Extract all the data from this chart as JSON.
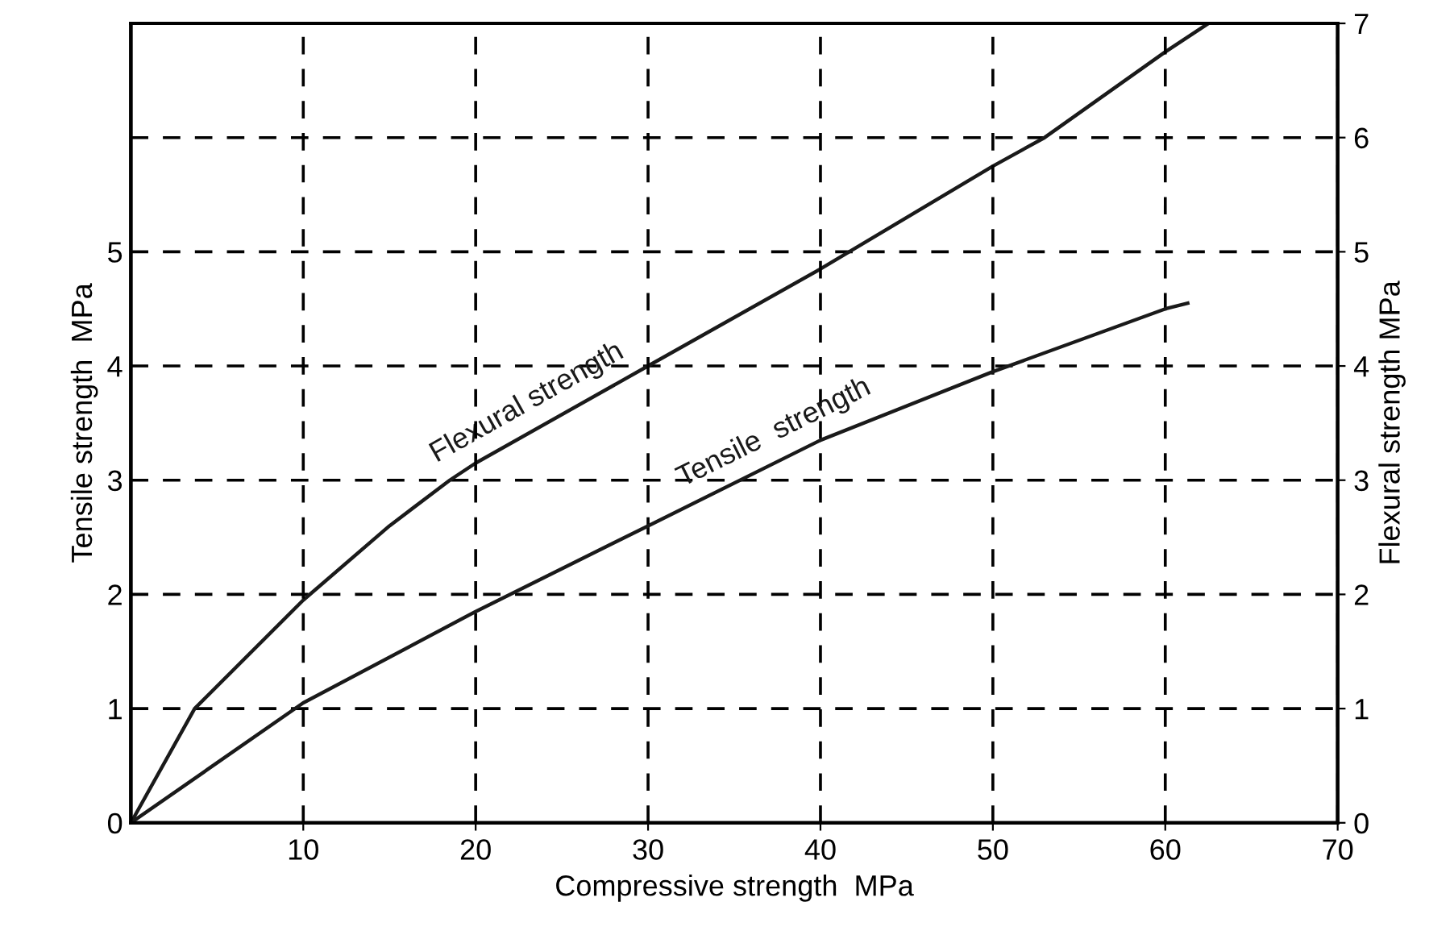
{
  "chart_data": {
    "type": "line",
    "xlabel": "Compressive strength  MPa",
    "ylabel": "Tensile strength  MPa",
    "y2label": "Flexural strength MPa",
    "series": [
      {
        "name": "Flexural strength",
        "color": "#1a1a1a",
        "axis": "y2",
        "x": [
          0,
          3.7,
          10,
          15,
          18.5,
          20,
          30,
          40,
          50,
          53,
          60,
          62.5
        ],
        "values": [
          0,
          1,
          1.95,
          2.6,
          3,
          3.15,
          4.0,
          4.85,
          5.75,
          6,
          6.75,
          7
        ]
      },
      {
        "name": "Tensile  strength",
        "color": "#1a1a1a",
        "x": [
          0,
          10,
          20,
          30,
          40,
          50,
          60,
          61.3
        ],
        "values": [
          0,
          1.05,
          1.85,
          2.6,
          3.35,
          3.95,
          4.5,
          4.55
        ]
      }
    ],
    "xlim": [
      0,
      70
    ],
    "xticks": [
      10,
      20,
      30,
      40,
      50,
      60,
      70
    ],
    "ylim": [
      0,
      7
    ],
    "yticks": [
      0,
      1,
      2,
      3,
      4,
      5
    ],
    "y2lim": [
      0,
      7
    ],
    "y2ticks": [
      0,
      1,
      2,
      3,
      4,
      5,
      6,
      7
    ],
    "grid": true,
    "line_style": "solid",
    "legend": false
  }
}
